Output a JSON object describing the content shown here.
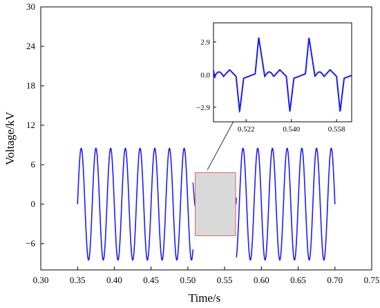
{
  "chart_data": {
    "type": "line",
    "xlabel": "Time/s",
    "ylabel": "Voltage/kV",
    "xlim": [
      0.3,
      0.75
    ],
    "ylim": [
      -10,
      30
    ],
    "xticks": [
      "0.30",
      "0.35",
      "0.40",
      "0.45",
      "0.50",
      "0.55",
      "0.60",
      "0.65",
      "0.70",
      "0.75"
    ],
    "yticks": [
      "−6",
      "0",
      "6",
      "12",
      "18",
      "24",
      "30"
    ],
    "series": [
      {
        "style": "50 Hz sinusoid",
        "segments": [
          {
            "t_start": 0.35,
            "t_end": 0.507,
            "amplitude": 8.5,
            "frequency": 50
          },
          {
            "t_start": 0.566,
            "t_end": 0.7,
            "amplitude": 8.5,
            "frequency": 50
          }
        ],
        "disturbed_interval": {
          "t_start": 0.507,
          "t_end": 0.566,
          "amplitude": 3.3,
          "waveform": "sawtooth-like with step edges"
        }
      }
    ],
    "highlight_box": {
      "x_range": [
        0.51,
        0.565
      ],
      "y_range": [
        -4.8,
        4.8
      ]
    },
    "inset": {
      "xlim": [
        0.509,
        0.564
      ],
      "ylim": [
        -4.2,
        4.6
      ],
      "xticks": [
        "0.522",
        "0.540",
        "0.558"
      ],
      "yticks": [
        "−2.9",
        "0.0",
        "2.9"
      ],
      "period": 0.02,
      "amplitude": 3.3
    },
    "colors": {
      "line": "#1a1aff",
      "box_fill": "#d9d9d9",
      "box_edge": "#e06060"
    }
  }
}
